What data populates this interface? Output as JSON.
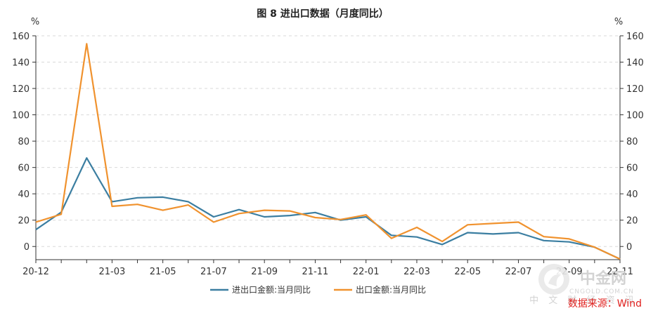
{
  "chart_data": {
    "type": "line",
    "title": "图 8    进出口数据（月度同比）",
    "ylabel_left": "%",
    "ylabel_right": "%",
    "ylim": [
      -10,
      160
    ],
    "yticks": [
      0,
      20,
      40,
      60,
      80,
      100,
      120,
      140,
      160
    ],
    "x": [
      "20-12",
      "21-01",
      "21-02",
      "21-03",
      "21-04",
      "21-05",
      "21-06",
      "21-07",
      "21-08",
      "21-09",
      "21-10",
      "21-11",
      "21-12",
      "22-01",
      "22-02",
      "22-03",
      "22-04",
      "22-05",
      "22-06",
      "22-07",
      "22-08",
      "22-09",
      "22-10",
      "22-11"
    ],
    "xtick_labels": [
      "20-12",
      "21-03",
      "21-05",
      "21-07",
      "21-09",
      "21-11",
      "22-01",
      "22-03",
      "22-05",
      "22-07",
      "22-09",
      "22-11"
    ],
    "grid": true,
    "legend_position": "bottom",
    "series": [
      {
        "name": "进出口金额:当月同比",
        "color": "#3b7ea1",
        "values": [
          12.8,
          26,
          67.2,
          34,
          37,
          37.5,
          34,
          22.5,
          28,
          22.5,
          23.5,
          25.8,
          20,
          22.5,
          8.5,
          7.2,
          1.5,
          10.5,
          9.5,
          10.5,
          4.5,
          3.5,
          -0.5,
          -9.5
        ]
      },
      {
        "name": "出口金额:当月同比",
        "color": "#f0922e",
        "values": [
          18.5,
          24.5,
          154,
          30.5,
          32,
          27.5,
          31.5,
          18.5,
          25,
          27.5,
          27,
          22,
          20.5,
          24,
          6.2,
          14.5,
          3.8,
          16.5,
          17.5,
          18.5,
          7.5,
          5.8,
          -0.5,
          -9.5
        ]
      }
    ]
  },
  "source_note": "数据来源：Wind",
  "watermark": {
    "brand": "中金网",
    "domain": "CNGOLD.COM.CN",
    "tagline": "中 文 财 经 资 讯"
  }
}
